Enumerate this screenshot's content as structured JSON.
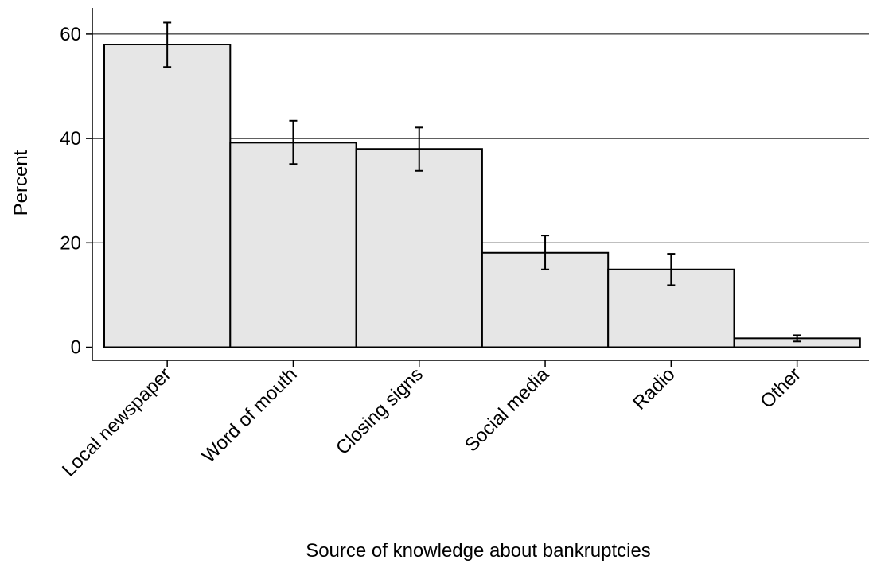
{
  "chart_data": {
    "type": "bar",
    "title": "",
    "xlabel": "Source of knowledge about bankruptcies",
    "ylabel": "Percent",
    "ylim": [
      0,
      64
    ],
    "yticks": [
      0,
      20,
      40,
      60
    ],
    "grid": true,
    "legend": "none",
    "categories": [
      "Local newspaper",
      "Word of mouth",
      "Closing signs",
      "Social media",
      "Radio",
      "Other"
    ],
    "values": [
      58,
      39.2,
      38,
      18.1,
      14.9,
      1.7
    ],
    "error_low": [
      53.7,
      35.1,
      33.8,
      14.9,
      11.9,
      1.1
    ],
    "error_high": [
      62.2,
      43.4,
      42.1,
      21.4,
      17.9,
      2.3
    ]
  },
  "colors": {
    "bar_fill": "#e6e6e6",
    "bar_stroke": "#000000",
    "grid": "#000000"
  }
}
